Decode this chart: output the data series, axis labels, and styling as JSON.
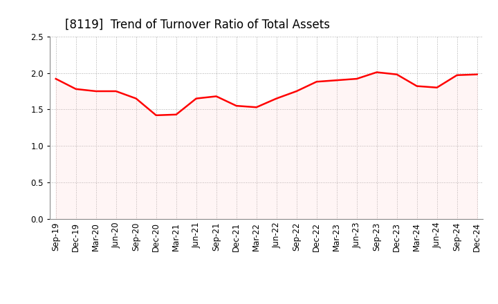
{
  "title": "[8119]  Trend of Turnover Ratio of Total Assets",
  "labels": [
    "Sep-19",
    "Dec-19",
    "Mar-20",
    "Jun-20",
    "Sep-20",
    "Dec-20",
    "Mar-21",
    "Jun-21",
    "Sep-21",
    "Dec-21",
    "Mar-22",
    "Jun-22",
    "Sep-22",
    "Dec-22",
    "Mar-23",
    "Jun-23",
    "Sep-23",
    "Dec-23",
    "Mar-24",
    "Jun-24",
    "Sep-24",
    "Dec-24"
  ],
  "values": [
    1.92,
    1.78,
    1.75,
    1.75,
    1.65,
    1.42,
    1.43,
    1.65,
    1.68,
    1.55,
    1.53,
    1.65,
    1.75,
    1.88,
    1.9,
    1.92,
    2.01,
    1.98,
    1.82,
    1.8,
    1.97,
    1.98
  ],
  "line_color": "#ff0000",
  "fill_color": "#ffcccc",
  "ylim": [
    0.0,
    2.5
  ],
  "yticks": [
    0.0,
    0.5,
    1.0,
    1.5,
    2.0,
    2.5
  ],
  "grid_color": "#aaaaaa",
  "bg_color": "#ffffff",
  "title_fontsize": 12,
  "tick_fontsize": 8.5,
  "line_width": 1.8
}
